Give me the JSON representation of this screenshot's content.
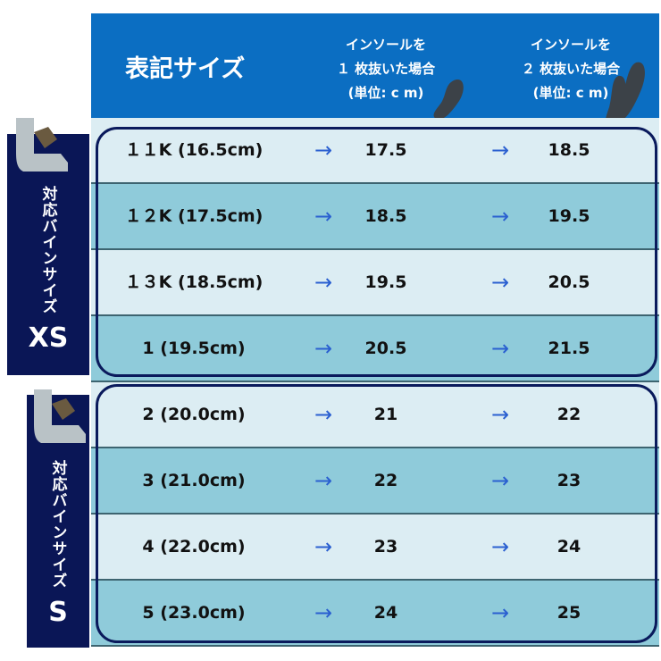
{
  "header": {
    "title": "表記サイズ",
    "col1": [
      "インソールを",
      "１ 枚抜いた場合",
      "(単位: c m)"
    ],
    "col2": [
      "インソールを",
      "２ 枚抜いた場合",
      "(単位: c m)"
    ]
  },
  "arrow": "→",
  "rows": [
    {
      "label": "１１K (16.5cm)",
      "v1": "17.5",
      "v2": "18.5"
    },
    {
      "label": "１２K (17.5cm)",
      "v1": "18.5",
      "v2": "19.5"
    },
    {
      "label": "１３K (18.5cm)",
      "v1": "19.5",
      "v2": "20.5"
    },
    {
      "label": "1 (19.5cm)",
      "v1": "20.5",
      "v2": "21.5"
    },
    {
      "label": "2 (20.0cm)",
      "v1": "21",
      "v2": "22"
    },
    {
      "label": "3 (21.0cm)",
      "v1": "22",
      "v2": "23"
    },
    {
      "label": "4 (22.0cm)",
      "v1": "23",
      "v2": "24"
    },
    {
      "label": "5 (23.0cm)",
      "v1": "24",
      "v2": "25"
    }
  ],
  "groups": [
    {
      "text": "対応バインサイズ",
      "size": "XS"
    },
    {
      "text": "対応バインサイズ",
      "size": "S"
    }
  ],
  "colors": {
    "header": "#0b6ec2",
    "row_light": "#dcedf3",
    "row_dark": "#8fcbda",
    "navy": "#0a1656",
    "arrow": "#2a5fd0"
  }
}
